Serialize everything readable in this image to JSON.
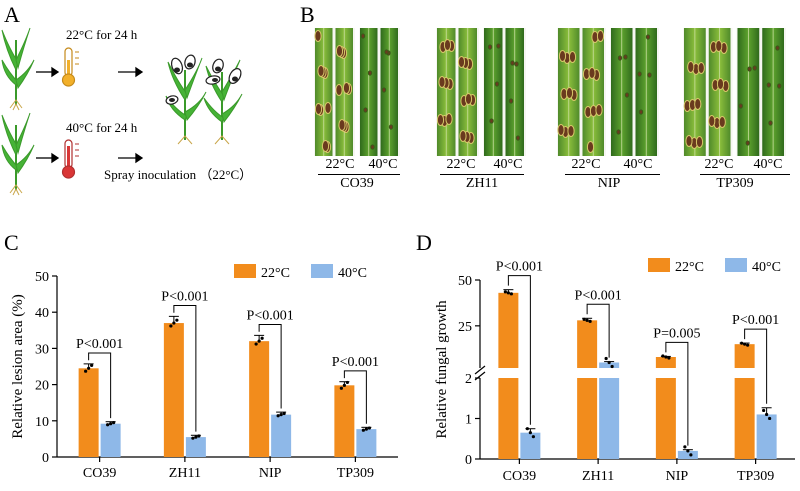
{
  "panels": {
    "a": "A",
    "b": "B",
    "c": "C",
    "d": "D"
  },
  "panel_a": {
    "condition_1": "22°C for 24 h",
    "condition_2": "40°C for 24 h",
    "inoculation": "Spray inoculation （22°C）"
  },
  "panel_b": {
    "groups": [
      {
        "name": "CO39",
        "t1": "22°C",
        "t2": "40°C"
      },
      {
        "name": "ZH11",
        "t1": "22°C",
        "t2": "40°C"
      },
      {
        "name": "NIP",
        "t1": "22°C",
        "t2": "40°C"
      },
      {
        "name": "TP309",
        "t1": "22°C",
        "t2": "40°C"
      }
    ]
  },
  "colors": {
    "c22": "#F28C1C",
    "c40": "#8EB8E8"
  },
  "chart_data": [
    {
      "type": "bar",
      "ylabel": "Relative lesion area (%)",
      "ylim": [
        0,
        50
      ],
      "yticks": [
        "0",
        "10",
        "20",
        "30",
        "40",
        "50"
      ],
      "categories": [
        "CO39",
        "ZH11",
        "NIP",
        "TP309"
      ],
      "series": [
        {
          "name": "22°C",
          "values": [
            24.5,
            37,
            32,
            19.8
          ]
        },
        {
          "name": "40°C",
          "values": [
            9.2,
            5.5,
            11.7,
            7.7
          ]
        }
      ],
      "annotations": [
        "P<0.001",
        "P<0.001",
        "P<0.001",
        "P<0.001"
      ],
      "legend": "top-right"
    },
    {
      "type": "bar",
      "ylabel": "Relative fungal growth",
      "broken_axis": true,
      "ylim_lower": [
        0,
        2
      ],
      "ylim_upper": [
        2,
        50
      ],
      "yticks_lower": [
        "0",
        "1",
        "2"
      ],
      "yticks_upper": [
        "25",
        "50"
      ],
      "categories": [
        "CO39",
        "ZH11",
        "NIP",
        "TP309"
      ],
      "series": [
        {
          "name": "22°C",
          "values": [
            43,
            28,
            8,
            15
          ]
        },
        {
          "name": "40°C",
          "values": [
            0.65,
            5,
            0.2,
            1.1
          ]
        }
      ],
      "annotations": [
        "P<0.001",
        "P<0.001",
        "P=0.005",
        "P<0.001"
      ],
      "legend": "top-right"
    }
  ]
}
